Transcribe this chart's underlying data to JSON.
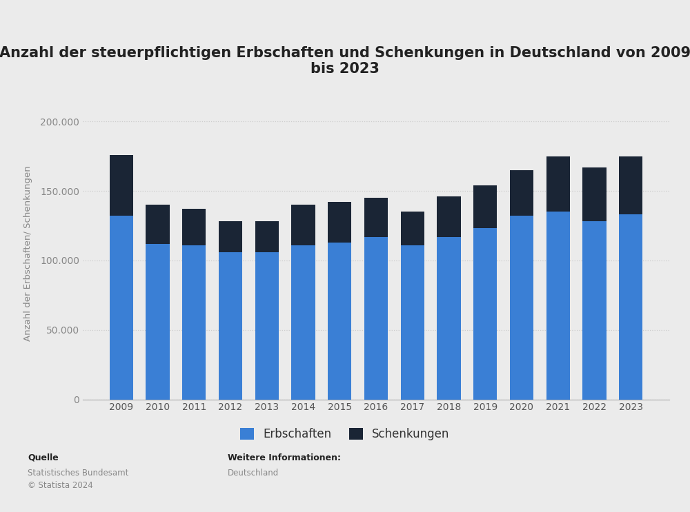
{
  "years": [
    2009,
    2010,
    2011,
    2012,
    2013,
    2014,
    2015,
    2016,
    2017,
    2018,
    2019,
    2020,
    2021,
    2022,
    2023
  ],
  "erbschaften": [
    132000,
    112000,
    111000,
    106000,
    106000,
    111000,
    113000,
    117000,
    111000,
    117000,
    123000,
    132000,
    135000,
    128000,
    133000
  ],
  "schenkungen": [
    44000,
    28000,
    26000,
    22000,
    22000,
    29000,
    29000,
    28000,
    24000,
    29000,
    31000,
    33000,
    40000,
    39000,
    42000
  ],
  "color_erbschaften": "#3a7fd5",
  "color_schenkungen": "#1a2535",
  "title": "Anzahl der steuerpflichtigen Erbschaften und Schenkungen in Deutschland von 2009\nbis 2023",
  "ylabel": "Anzahl der Erbschaften/ Schenkungen",
  "legend_erbschaften": "Erbschaften",
  "legend_schenkungen": "Schenkungen",
  "source_label": "Quelle",
  "source_text": "Statistisches Bundesamt\n© Statista 2024",
  "info_label": "Weitere Informationen:",
  "info_text": "Deutschland",
  "ylim": [
    0,
    210000
  ],
  "yticks": [
    0,
    50000,
    100000,
    150000,
    200000
  ],
  "background_color": "#ebebeb",
  "plot_background_color": "#ebebeb",
  "grid_color": "#cccccc",
  "title_fontsize": 15,
  "label_fontsize": 9.5,
  "tick_fontsize": 10
}
